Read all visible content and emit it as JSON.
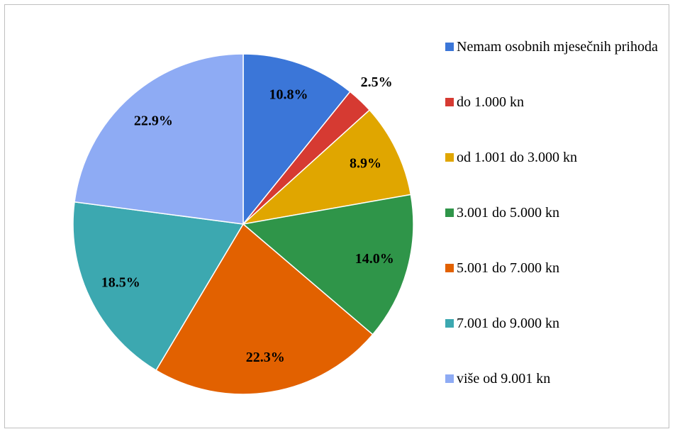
{
  "chart_data": {
    "type": "pie",
    "categories": [
      "Nemam osobnih mjesečnih prihoda",
      "do 1.000 kn",
      "od 1.001 do 3.000 kn",
      "3.001 do 5.000 kn",
      "5.001 do 7.000 kn",
      "7.001 do 9.000 kn",
      "više od 9.001 kn"
    ],
    "values": [
      10.8,
      2.5,
      8.9,
      14.0,
      22.3,
      18.5,
      22.9
    ],
    "value_labels": [
      "10.8%",
      "2.5%",
      "8.9%",
      "14.0%",
      "22.3%",
      "18.5%",
      "22.9%"
    ],
    "colors": [
      "#3b76d8",
      "#d63a32",
      "#e0a600",
      "#2f9549",
      "#e26100",
      "#3ca8b0",
      "#8eabf4"
    ],
    "legend": "right"
  }
}
